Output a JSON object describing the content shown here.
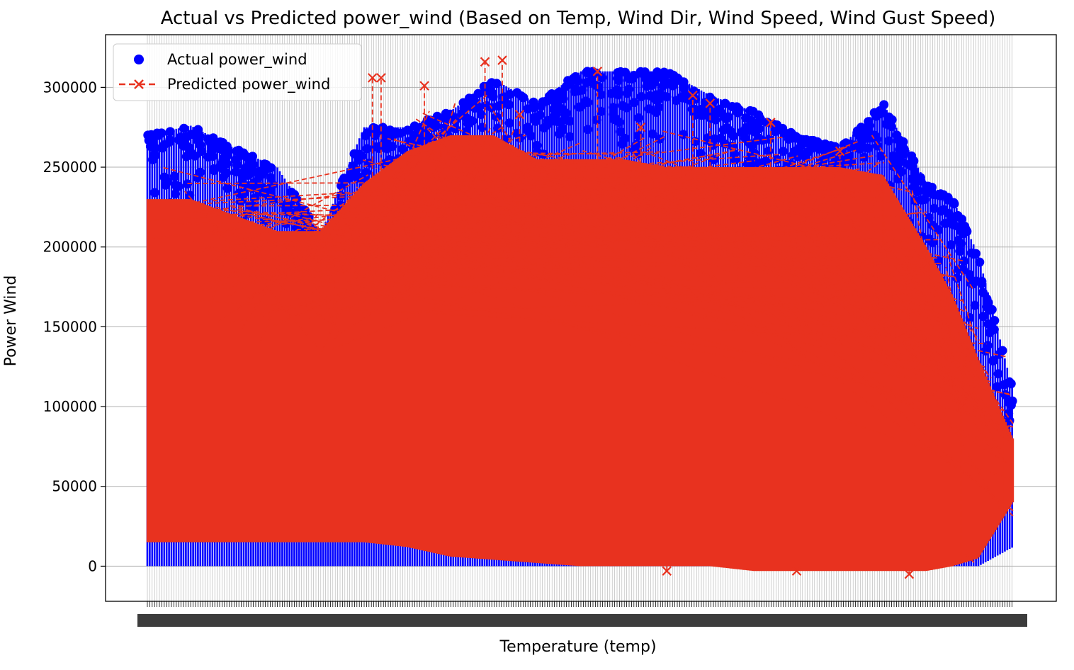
{
  "chart_data": {
    "type": "scatter",
    "title": "Actual vs Predicted power_wind (Based on Temp, Wind Dir, Wind Speed, Wind Gust Speed)",
    "xlabel": "Temperature (temp)",
    "ylabel": "Power Wind",
    "ylim": [
      -22000,
      333000
    ],
    "yticks": [
      0,
      50000,
      100000,
      150000,
      200000,
      250000,
      300000
    ],
    "ytick_labels": [
      "0",
      "50000",
      "100000",
      "150000",
      "200000",
      "250000",
      "300000"
    ],
    "x_axis": "categorical temperature values, tick labels densely overlapping and illegible",
    "grid": true,
    "legend_position": "top-left",
    "series": [
      {
        "name": "Actual power_wind",
        "kind": "scatter",
        "marker": "circle",
        "color": "#0000ff",
        "envelope": {
          "x_pct": [
            0,
            5,
            10,
            15,
            20,
            25,
            30,
            35,
            40,
            45,
            50,
            55,
            60,
            65,
            70,
            75,
            80,
            85,
            90,
            93,
            96,
            100
          ],
          "upper": [
            270000,
            276000,
            262000,
            250000,
            208000,
            275000,
            275000,
            285000,
            305000,
            290000,
            310000,
            310000,
            310000,
            295000,
            285000,
            270000,
            262000,
            290000,
            240000,
            230000,
            195000,
            110000
          ],
          "lower": [
            0,
            0,
            0,
            0,
            0,
            0,
            0,
            0,
            0,
            0,
            0,
            0,
            0,
            0,
            0,
            0,
            0,
            0,
            0,
            0,
            0,
            12000
          ]
        }
      },
      {
        "name": "Predicted power_wind",
        "kind": "line",
        "marker": "x",
        "linestyle": "dashed",
        "color": "#e8321f",
        "envelope": {
          "x_pct": [
            0,
            5,
            10,
            15,
            20,
            25,
            30,
            35,
            40,
            45,
            50,
            55,
            60,
            65,
            70,
            75,
            80,
            85,
            90,
            93,
            96,
            100
          ],
          "upper": [
            230000,
            230000,
            220000,
            210000,
            210000,
            240000,
            260000,
            270000,
            270000,
            255000,
            255000,
            255000,
            250000,
            250000,
            250000,
            250000,
            250000,
            245000,
            200000,
            170000,
            130000,
            80000
          ],
          "lower": [
            15000,
            15000,
            15000,
            15000,
            15000,
            15000,
            12000,
            6000,
            4000,
            2000,
            0,
            0,
            0,
            0,
            -3000,
            -3000,
            -3000,
            -3000,
            -3000,
            0,
            5000,
            40000
          ]
        },
        "outliers": [
          [
            26,
            306000
          ],
          [
            27,
            306000
          ],
          [
            32,
            301000
          ],
          [
            39,
            316000
          ],
          [
            41,
            317000
          ],
          [
            43,
            283000
          ],
          [
            52,
            310000
          ],
          [
            57,
            275000
          ],
          [
            63,
            295000
          ],
          [
            65,
            290000
          ],
          [
            72,
            278000
          ],
          [
            80,
            260000
          ],
          [
            85,
            200000
          ],
          [
            90,
            190000
          ],
          [
            94,
            100000
          ],
          [
            99,
            85000
          ],
          [
            95,
            5000
          ],
          [
            88,
            -5000
          ],
          [
            75,
            -3000
          ],
          [
            60,
            -3000
          ]
        ]
      }
    ]
  }
}
